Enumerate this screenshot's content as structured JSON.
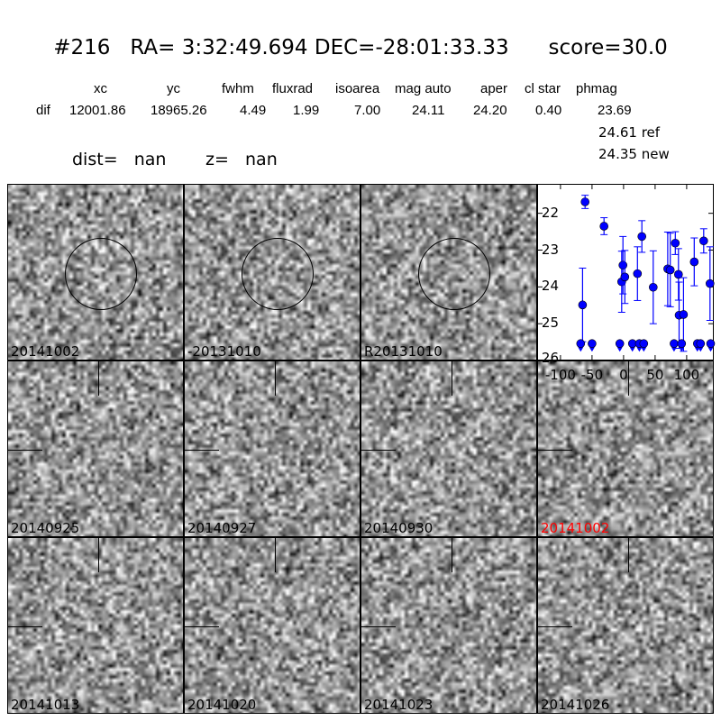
{
  "title": "#216   RA= 3:32:49.694 DEC=-28:01:33.33      score=30.0",
  "header": {
    "columns": [
      "xc",
      "yc",
      "fwhm",
      "fluxrad",
      "isoarea",
      "mag auto",
      "aper",
      "cl star",
      "phmag"
    ],
    "row_label": "dif",
    "values": [
      "12001.86",
      "18965.26",
      "4.49",
      "1.99",
      "7.00",
      "24.11",
      "24.20",
      "0.40",
      "23.69"
    ],
    "ref": "24.61 ref",
    "new": "24.35 new",
    "dist": "dist=   nan",
    "z": "z=   nan"
  },
  "stamps": [
    {
      "label": "20141002",
      "circle": true,
      "color": "#000000"
    },
    {
      "label": "-20131010",
      "circle": true,
      "color": "#000000"
    },
    {
      "label": "R20131010",
      "circle": true,
      "color": "#000000"
    },
    null,
    {
      "label": "20140925",
      "color": "#000000"
    },
    {
      "label": "20140927",
      "color": "#000000"
    },
    {
      "label": "20140930",
      "color": "#000000"
    },
    {
      "label": "20141002",
      "color": "#ff0000"
    },
    {
      "label": "20141013",
      "color": "#000000"
    },
    {
      "label": "20141020",
      "color": "#000000"
    },
    {
      "label": "20141023",
      "color": "#000000"
    },
    {
      "label": "20141026",
      "color": "#000000"
    }
  ],
  "chart_data": {
    "type": "scatter",
    "xlim": [
      -137,
      143
    ],
    "ylim": [
      26,
      21.2
    ],
    "y_inverted": true,
    "xticks": [
      "-100",
      "-50",
      "0",
      "50",
      "100"
    ],
    "xtick_values": [
      -100,
      -50,
      0,
      50,
      100
    ],
    "yticks": [
      "22",
      "23",
      "24",
      "25",
      "26"
    ],
    "ytick_values": [
      22,
      23,
      24,
      25,
      26
    ],
    "color": "#0000ff",
    "detections": [
      {
        "x": -61,
        "y": 21.69,
        "err": 0.18
      },
      {
        "x": -31,
        "y": 22.35,
        "err": 0.23
      },
      {
        "x": -65,
        "y": 24.49,
        "err": 1.0
      },
      {
        "x": -3,
        "y": 23.86,
        "err": 0.83
      },
      {
        "x": -1,
        "y": 23.41,
        "err": 0.78
      },
      {
        "x": 2,
        "y": 23.73,
        "err": 0.72
      },
      {
        "x": 22,
        "y": 23.64,
        "err": 0.73
      },
      {
        "x": 29,
        "y": 22.63,
        "err": 0.43
      },
      {
        "x": 47,
        "y": 24.01,
        "err": 0.99
      },
      {
        "x": 70,
        "y": 23.51,
        "err": 1.0
      },
      {
        "x": 74,
        "y": 23.54,
        "err": 1.0
      },
      {
        "x": 82,
        "y": 22.81,
        "err": 0.31
      },
      {
        "x": 87,
        "y": 23.66,
        "err": 0.7
      },
      {
        "x": 88,
        "y": 24.77,
        "err": 0.9
      },
      {
        "x": 95,
        "y": 24.75,
        "err": 1.0
      },
      {
        "x": 112,
        "y": 23.32,
        "err": 0.65
      },
      {
        "x": 127,
        "y": 22.75,
        "err": 0.33
      },
      {
        "x": 137,
        "y": 23.91,
        "err": 1.0
      }
    ],
    "upper_limits": {
      "y": 25.54,
      "x": [
        -68,
        -50,
        -6,
        14,
        25,
        32,
        80,
        92,
        117,
        122,
        138
      ]
    }
  }
}
